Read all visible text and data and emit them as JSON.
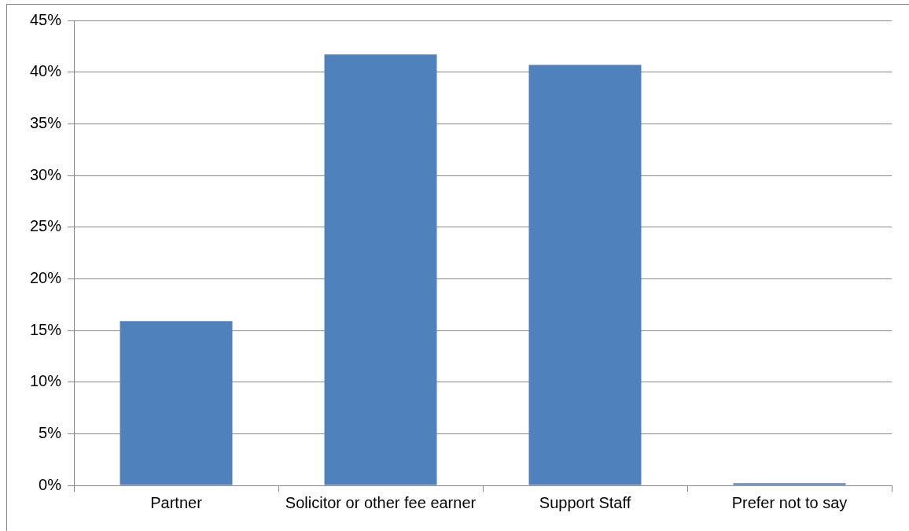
{
  "chart_data": {
    "type": "bar",
    "categories": [
      "Partner",
      "Solicitor or other fee earner",
      "Support Staff",
      "Prefer not to say"
    ],
    "values": [
      15.9,
      41.7,
      40.7,
      0.2
    ],
    "color": "#4f81bd",
    "ylim": [
      0,
      45
    ],
    "yticks": [
      {
        "value": 0,
        "label": "0%"
      },
      {
        "value": 5,
        "label": "5%"
      },
      {
        "value": 10,
        "label": "10%"
      },
      {
        "value": 15,
        "label": "15%"
      },
      {
        "value": 20,
        "label": "20%"
      },
      {
        "value": 25,
        "label": "25%"
      },
      {
        "value": 30,
        "label": "30%"
      },
      {
        "value": 35,
        "label": "35%"
      },
      {
        "value": 40,
        "label": "40%"
      },
      {
        "value": 45,
        "label": "45%"
      }
    ],
    "grid": "y",
    "legend": false
  }
}
